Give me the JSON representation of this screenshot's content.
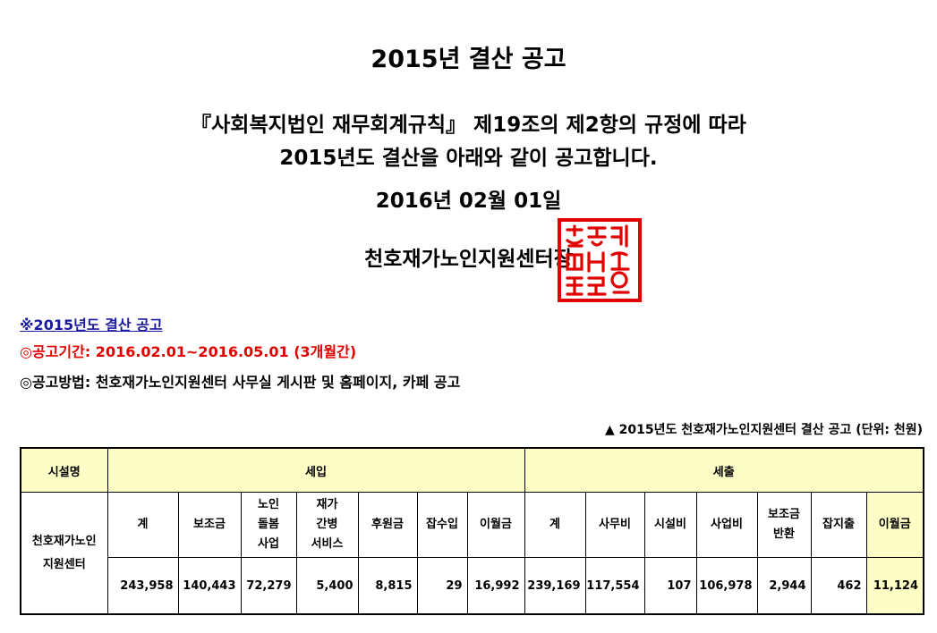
{
  "title": "2015년 결산 공고",
  "intro_line1": "『사회복지법인 재무회계규칙』 제19조의 제2항의 규정에 따라",
  "intro_line2": "2015년도 결산을 아래와 같이 공고합니다.",
  "date": "2016년 02월 01일",
  "organization": "천호재가노인지원센터장",
  "seal_text": "천호재가노인지원센터의인",
  "seal_color": "#e00000",
  "note": "※2015년도 결산 공고",
  "period": "◎공고기간: 2016.02.01~2016.05.01 (3개월간)",
  "method": "◎공고방법: 천호재가노인지원센터 사무실 게시판 및 홈페이지, 카페 공고",
  "table_caption": "▲ 2015년도 천호재가노인지원센터 결산 공고 (단위: 천원)",
  "table": {
    "facility_header": "시설명",
    "revenue_header": "세입",
    "expense_header": "세출",
    "facility_name": "천호재가노인지원센터",
    "revenue_columns": [
      "계",
      "보조금",
      "노인돌봄사업",
      "재가간병서비스",
      "후원금",
      "잡수입",
      "이월금"
    ],
    "expense_columns": [
      "계",
      "사무비",
      "시설비",
      "사업비",
      "보조금반환",
      "잡지출",
      "이월금"
    ],
    "revenue_values": [
      "243,958",
      "140,443",
      "72,279",
      "5,400",
      "8,815",
      "29",
      "16,992"
    ],
    "expense_values": [
      "239,169",
      "117,554",
      "107",
      "106,978",
      "2,944",
      "462",
      "11,124"
    ]
  }
}
